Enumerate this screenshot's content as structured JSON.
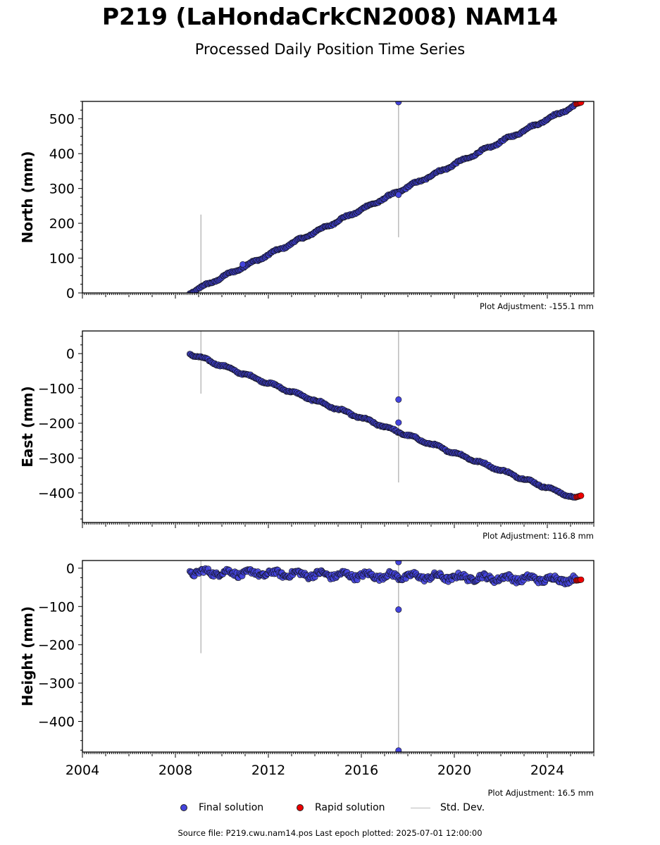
{
  "title": "P219 (LaHondaCrkCN2008) NAM14",
  "subtitle": "Processed Daily Position Time Series",
  "footer": "Source file: P219.cwu.nam14.pos  Last epoch plotted: 2025-07-01 12:00:00",
  "legend": {
    "final_label": "Final solution",
    "rapid_label": "Rapid solution",
    "std_label": "Std. Dev."
  },
  "colors": {
    "final": "#4444dd",
    "rapid": "#ee0000",
    "stddev": "#bbbbbb",
    "edge": "#111111"
  },
  "chart_data": [
    {
      "type": "scatter",
      "panel": "north",
      "ylabel": "North (mm)",
      "adjustment": "Plot Adjustment: -155.1 mm",
      "xlim": [
        2004.0,
        2026.0
      ],
      "ylim": [
        0,
        550
      ],
      "yticks": [
        0,
        100,
        200,
        300,
        400,
        500
      ],
      "xticks": [
        2004,
        2008,
        2012,
        2016,
        2020,
        2024
      ],
      "grid": false,
      "final_trend": {
        "x": [
          2008.62,
          2025.2
        ],
        "y": [
          0,
          538
        ]
      },
      "rapid": {
        "x": [
          2025.25,
          2025.45
        ],
        "y": [
          543,
          547
        ]
      },
      "outliers": [
        {
          "x": 2017.6,
          "y": 548
        },
        {
          "x": 2017.6,
          "y": 282
        },
        {
          "x": 2010.9,
          "y": 82
        }
      ],
      "stddev_bars": [
        {
          "x": 2009.1,
          "y0": 0,
          "y1": 225
        },
        {
          "x": 2017.6,
          "y0": 160,
          "y1": 550
        }
      ]
    },
    {
      "type": "scatter",
      "panel": "east",
      "ylabel": "East (mm)",
      "adjustment": "Plot Adjustment: 116.8 mm",
      "xlim": [
        2004.0,
        2026.0
      ],
      "ylim": [
        -485,
        65
      ],
      "yticks": [
        -400,
        -300,
        -200,
        -100,
        0
      ],
      "xticks": [
        2004,
        2008,
        2012,
        2016,
        2020,
        2024
      ],
      "grid": false,
      "final_trend": {
        "x": [
          2008.62,
          2025.2
        ],
        "y": [
          0,
          -415
        ]
      },
      "rapid": {
        "x": [
          2025.25,
          2025.45
        ],
        "y": [
          -412,
          -408
        ]
      },
      "outliers": [
        {
          "x": 2017.6,
          "y": -132
        },
        {
          "x": 2017.6,
          "y": -198
        }
      ],
      "stddev_bars": [
        {
          "x": 2009.1,
          "y0": -115,
          "y1": 65
        },
        {
          "x": 2017.6,
          "y0": -370,
          "y1": 65
        }
      ]
    },
    {
      "type": "scatter",
      "panel": "height",
      "ylabel": "Height (mm)",
      "adjustment": "Plot Adjustment: 16.5 mm",
      "xlim": [
        2004.0,
        2026.0
      ],
      "ylim": [
        -480,
        20
      ],
      "yticks": [
        -400,
        -300,
        -200,
        -100,
        0
      ],
      "xticks": [
        2004,
        2008,
        2012,
        2016,
        2020,
        2024
      ],
      "grid": false,
      "final_trend": {
        "x": [
          2008.62,
          2025.2
        ],
        "y": [
          -10,
          -30
        ]
      },
      "rapid": {
        "x": [
          2025.25,
          2025.45
        ],
        "y": [
          -32,
          -30
        ]
      },
      "outliers": [
        {
          "x": 2017.6,
          "y": 16
        },
        {
          "x": 2017.6,
          "y": -108
        },
        {
          "x": 2017.6,
          "y": -476
        }
      ],
      "stddev_bars": [
        {
          "x": 2009.1,
          "y0": -222,
          "y1": 20
        },
        {
          "x": 2017.6,
          "y0": -480,
          "y1": 20
        }
      ]
    }
  ]
}
